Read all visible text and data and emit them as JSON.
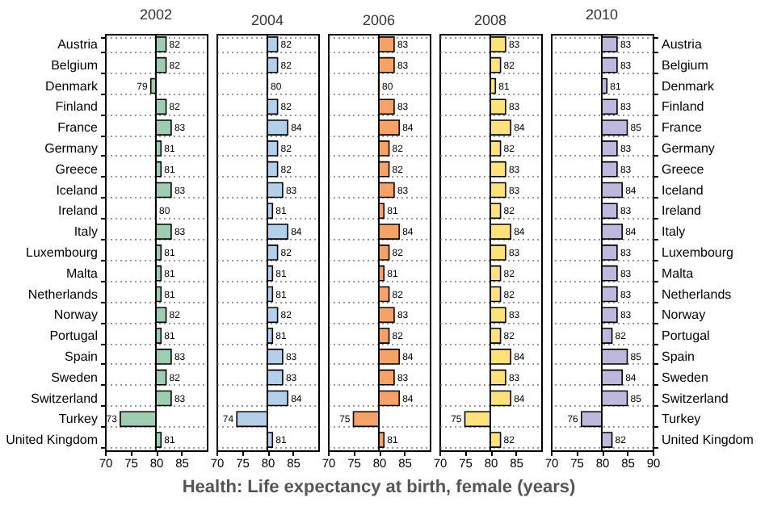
{
  "chart_data": [
    {
      "type": "bar",
      "orientation": "horizontal",
      "title": "2002",
      "categories": [
        "Austria",
        "Belgium",
        "Denmark",
        "Finland",
        "France",
        "Germany",
        "Greece",
        "Iceland",
        "Ireland",
        "Italy",
        "Luxembourg",
        "Malta",
        "Netherlands",
        "Norway",
        "Portugal",
        "Spain",
        "Sweden",
        "Switzerland",
        "Turkey",
        "United Kingdom"
      ],
      "base": [
        80,
        80,
        80,
        80,
        80,
        80,
        80,
        80,
        80,
        80,
        80,
        80,
        80,
        80,
        80,
        80,
        80,
        80,
        80,
        80
      ],
      "values": [
        2,
        2,
        -1,
        2,
        3,
        1,
        1,
        3,
        0,
        3,
        1,
        1,
        1,
        2,
        1,
        3,
        2,
        3,
        -7,
        1
      ],
      "value_labels": [
        "82",
        "82",
        "79",
        "82",
        "83",
        "81",
        "81",
        "83",
        "80",
        "83",
        "81",
        "81",
        "81",
        "82",
        "81",
        "83",
        "82",
        "83",
        "73",
        "81"
      ],
      "color": "#9ecdb2",
      "xlim": [
        70,
        90
      ],
      "xticks": [
        70,
        75,
        80,
        85
      ],
      "grid": "y",
      "ref_lines": [
        {
          "axis": "x",
          "value": 80
        }
      ],
      "annotations": [
        "Health: Life expectancy at birth, female (years)"
      ]
    },
    {
      "type": "bar",
      "orientation": "horizontal",
      "title": "2004",
      "base": [
        80,
        80,
        80,
        80,
        80,
        80,
        80,
        80,
        80,
        80,
        80,
        80,
        80,
        80,
        80,
        80,
        80,
        80,
        80,
        80
      ],
      "values": [
        2,
        2,
        0,
        2,
        4,
        2,
        2,
        3,
        1,
        4,
        2,
        1,
        1,
        2,
        1,
        3,
        3,
        4,
        -6,
        1
      ],
      "value_labels": [
        "82",
        "82",
        "80",
        "82",
        "84",
        "82",
        "82",
        "83",
        "81",
        "84",
        "82",
        "81",
        "81",
        "82",
        "81",
        "83",
        "83",
        "84",
        "74",
        "81"
      ],
      "color": "#b3cfea",
      "xlim": [
        70,
        90
      ],
      "xticks": [
        70,
        75,
        80,
        85
      ],
      "grid": "y",
      "ref_lines": [
        {
          "axis": "x",
          "value": 80
        }
      ],
      "tick_labels": "x"
    },
    {
      "type": "bar",
      "orientation": "horizontal",
      "title": "2006",
      "base": [
        80,
        80,
        80,
        80,
        80,
        80,
        80,
        80,
        80,
        80,
        80,
        80,
        80,
        80,
        80,
        80,
        80,
        80,
        80,
        80
      ],
      "values": [
        3,
        3,
        0,
        3,
        4,
        2,
        2,
        3,
        1,
        4,
        2,
        1,
        2,
        3,
        2,
        4,
        3,
        4,
        -5,
        1
      ],
      "value_labels": [
        "83",
        "83",
        "80",
        "83",
        "84",
        "82",
        "82",
        "83",
        "81",
        "84",
        "82",
        "81",
        "82",
        "83",
        "82",
        "84",
        "83",
        "84",
        "75",
        "81"
      ],
      "color": "#f5a266",
      "xlim": [
        70,
        90
      ],
      "xticks": [
        70,
        75,
        80,
        85
      ],
      "grid": "y",
      "ref_lines": [
        {
          "axis": "x",
          "value": 80
        }
      ],
      "tick_labels": "x"
    },
    {
      "type": "bar",
      "orientation": "horizontal",
      "title": "2008",
      "base": [
        80,
        80,
        80,
        80,
        80,
        80,
        80,
        80,
        80,
        80,
        80,
        80,
        80,
        80,
        80,
        80,
        80,
        80,
        80,
        80
      ],
      "values": [
        3,
        2,
        1,
        3,
        4,
        2,
        3,
        3,
        2,
        4,
        3,
        2,
        2,
        3,
        2,
        4,
        3,
        4,
        -5,
        2
      ],
      "value_labels": [
        "83",
        "82",
        "81",
        "83",
        "84",
        "82",
        "83",
        "83",
        "82",
        "84",
        "83",
        "82",
        "82",
        "83",
        "82",
        "84",
        "83",
        "84",
        "75",
        "82"
      ],
      "color": "#fde27c",
      "xlim": [
        70,
        90
      ],
      "xticks": [
        70,
        75,
        80,
        85
      ],
      "grid": "y",
      "ref_lines": [
        {
          "axis": "x",
          "value": 80
        }
      ],
      "tick_labels": "x"
    },
    {
      "type": "bar",
      "orientation": "horizontal",
      "title": "2010",
      "categories": [
        "Austria",
        "Belgium",
        "Denmark",
        "Finland",
        "France",
        "Germany",
        "Greece",
        "Iceland",
        "Ireland",
        "Italy",
        "Luxembourg",
        "Malta",
        "Netherlands",
        "Norway",
        "Portugal",
        "Spain",
        "Sweden",
        "Switzerland",
        "Turkey",
        "United Kingdom"
      ],
      "base": [
        80,
        80,
        80,
        80,
        80,
        80,
        80,
        80,
        80,
        80,
        80,
        80,
        80,
        80,
        80,
        80,
        80,
        80,
        80,
        80
      ],
      "values": [
        3,
        3,
        1,
        3,
        5,
        3,
        3,
        4,
        3,
        4,
        3,
        3,
        3,
        3,
        2,
        5,
        4,
        5,
        -4,
        2
      ],
      "value_labels": [
        "83",
        "83",
        "81",
        "83",
        "85",
        "83",
        "83",
        "84",
        "83",
        "84",
        "83",
        "83",
        "83",
        "83",
        "82",
        "85",
        "84",
        "85",
        "76",
        "82"
      ],
      "color": "#bdb8dc",
      "xlim": [
        70,
        90
      ],
      "xticks": [
        70,
        75,
        80,
        85,
        90
      ],
      "grid": "y",
      "ref_lines": [
        {
          "axis": "x",
          "value": 80
        }
      ]
    }
  ]
}
